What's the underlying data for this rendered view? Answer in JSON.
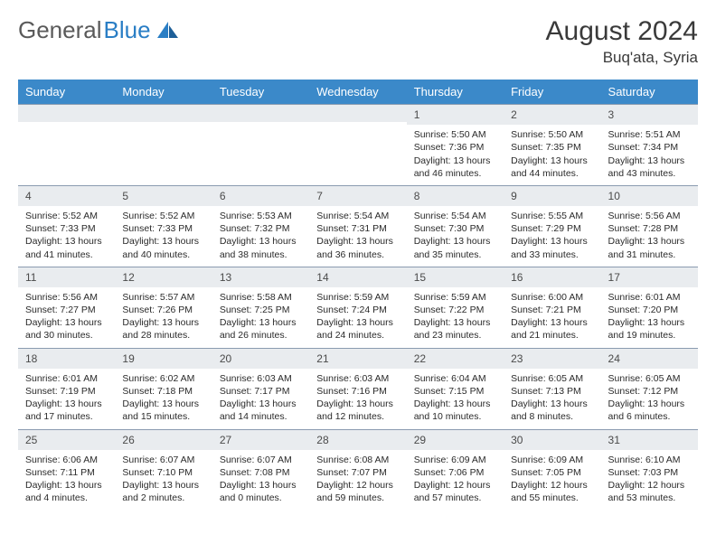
{
  "brand": {
    "part1": "General",
    "part2": "Blue"
  },
  "title": "August 2024",
  "location": "Buq'ata, Syria",
  "colors": {
    "header_bg": "#3b89c9",
    "header_text": "#ffffff",
    "daynum_bg": "#e9ecef",
    "daynum_border": "#8a9bb0",
    "brand_gray": "#5a5a5a",
    "brand_blue": "#2a7ec5",
    "body_text": "#2a2a2a",
    "page_bg": "#ffffff"
  },
  "weekdays": [
    "Sunday",
    "Monday",
    "Tuesday",
    "Wednesday",
    "Thursday",
    "Friday",
    "Saturday"
  ],
  "grid": [
    [
      null,
      null,
      null,
      null,
      {
        "n": "1",
        "sr": "5:50 AM",
        "ss": "7:36 PM",
        "dl": "13 hours and 46 minutes."
      },
      {
        "n": "2",
        "sr": "5:50 AM",
        "ss": "7:35 PM",
        "dl": "13 hours and 44 minutes."
      },
      {
        "n": "3",
        "sr": "5:51 AM",
        "ss": "7:34 PM",
        "dl": "13 hours and 43 minutes."
      }
    ],
    [
      {
        "n": "4",
        "sr": "5:52 AM",
        "ss": "7:33 PM",
        "dl": "13 hours and 41 minutes."
      },
      {
        "n": "5",
        "sr": "5:52 AM",
        "ss": "7:33 PM",
        "dl": "13 hours and 40 minutes."
      },
      {
        "n": "6",
        "sr": "5:53 AM",
        "ss": "7:32 PM",
        "dl": "13 hours and 38 minutes."
      },
      {
        "n": "7",
        "sr": "5:54 AM",
        "ss": "7:31 PM",
        "dl": "13 hours and 36 minutes."
      },
      {
        "n": "8",
        "sr": "5:54 AM",
        "ss": "7:30 PM",
        "dl": "13 hours and 35 minutes."
      },
      {
        "n": "9",
        "sr": "5:55 AM",
        "ss": "7:29 PM",
        "dl": "13 hours and 33 minutes."
      },
      {
        "n": "10",
        "sr": "5:56 AM",
        "ss": "7:28 PM",
        "dl": "13 hours and 31 minutes."
      }
    ],
    [
      {
        "n": "11",
        "sr": "5:56 AM",
        "ss": "7:27 PM",
        "dl": "13 hours and 30 minutes."
      },
      {
        "n": "12",
        "sr": "5:57 AM",
        "ss": "7:26 PM",
        "dl": "13 hours and 28 minutes."
      },
      {
        "n": "13",
        "sr": "5:58 AM",
        "ss": "7:25 PM",
        "dl": "13 hours and 26 minutes."
      },
      {
        "n": "14",
        "sr": "5:59 AM",
        "ss": "7:24 PM",
        "dl": "13 hours and 24 minutes."
      },
      {
        "n": "15",
        "sr": "5:59 AM",
        "ss": "7:22 PM",
        "dl": "13 hours and 23 minutes."
      },
      {
        "n": "16",
        "sr": "6:00 AM",
        "ss": "7:21 PM",
        "dl": "13 hours and 21 minutes."
      },
      {
        "n": "17",
        "sr": "6:01 AM",
        "ss": "7:20 PM",
        "dl": "13 hours and 19 minutes."
      }
    ],
    [
      {
        "n": "18",
        "sr": "6:01 AM",
        "ss": "7:19 PM",
        "dl": "13 hours and 17 minutes."
      },
      {
        "n": "19",
        "sr": "6:02 AM",
        "ss": "7:18 PM",
        "dl": "13 hours and 15 minutes."
      },
      {
        "n": "20",
        "sr": "6:03 AM",
        "ss": "7:17 PM",
        "dl": "13 hours and 14 minutes."
      },
      {
        "n": "21",
        "sr": "6:03 AM",
        "ss": "7:16 PM",
        "dl": "13 hours and 12 minutes."
      },
      {
        "n": "22",
        "sr": "6:04 AM",
        "ss": "7:15 PM",
        "dl": "13 hours and 10 minutes."
      },
      {
        "n": "23",
        "sr": "6:05 AM",
        "ss": "7:13 PM",
        "dl": "13 hours and 8 minutes."
      },
      {
        "n": "24",
        "sr": "6:05 AM",
        "ss": "7:12 PM",
        "dl": "13 hours and 6 minutes."
      }
    ],
    [
      {
        "n": "25",
        "sr": "6:06 AM",
        "ss": "7:11 PM",
        "dl": "13 hours and 4 minutes."
      },
      {
        "n": "26",
        "sr": "6:07 AM",
        "ss": "7:10 PM",
        "dl": "13 hours and 2 minutes."
      },
      {
        "n": "27",
        "sr": "6:07 AM",
        "ss": "7:08 PM",
        "dl": "13 hours and 0 minutes."
      },
      {
        "n": "28",
        "sr": "6:08 AM",
        "ss": "7:07 PM",
        "dl": "12 hours and 59 minutes."
      },
      {
        "n": "29",
        "sr": "6:09 AM",
        "ss": "7:06 PM",
        "dl": "12 hours and 57 minutes."
      },
      {
        "n": "30",
        "sr": "6:09 AM",
        "ss": "7:05 PM",
        "dl": "12 hours and 55 minutes."
      },
      {
        "n": "31",
        "sr": "6:10 AM",
        "ss": "7:03 PM",
        "dl": "12 hours and 53 minutes."
      }
    ]
  ],
  "labels": {
    "sunrise": "Sunrise:",
    "sunset": "Sunset:",
    "daylight": "Daylight:"
  }
}
